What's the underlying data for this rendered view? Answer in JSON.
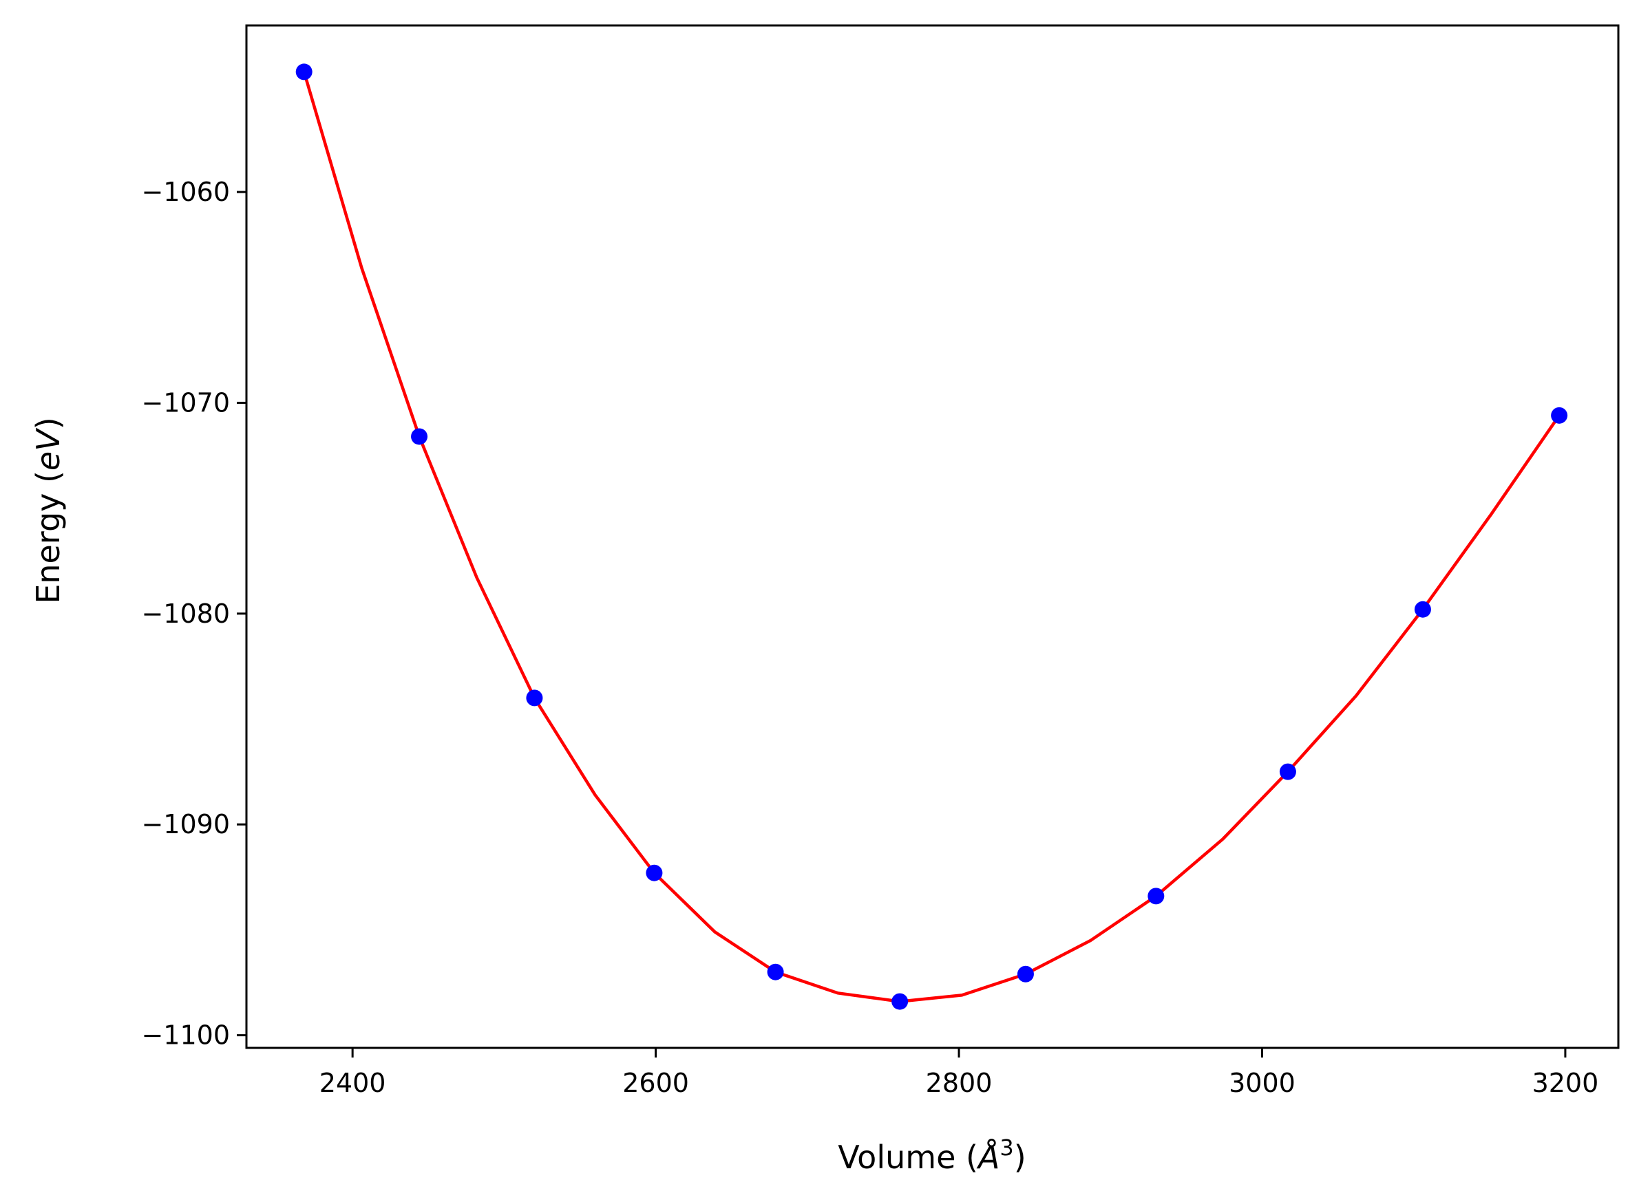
{
  "chart_data": {
    "type": "scatter",
    "title": "",
    "xlabel_parts": {
      "text": "Volume (",
      "symbol": "Å",
      "exponent": "3",
      "close": ")"
    },
    "ylabel_parts": {
      "text": "Energy (",
      "unit": "eV",
      "close": ")"
    },
    "xlim": [
      2330,
      3235
    ],
    "ylim": [
      -1100.6,
      -1052.1
    ],
    "xticks": [
      2400,
      2600,
      2800,
      3000,
      3200
    ],
    "xtick_labels": [
      "2400",
      "2600",
      "2800",
      "3000",
      "3200"
    ],
    "yticks": [
      -1060,
      -1070,
      -1080,
      -1090,
      -1100
    ],
    "ytick_labels": [
      "−1060",
      "−1070",
      "−1080",
      "−1090",
      "−1100"
    ],
    "grid": false,
    "series": [
      {
        "kind": "points",
        "color": "#0000ff",
        "x": [
          2368,
          2444,
          2520,
          2599,
          2679,
          2761,
          2844,
          2930,
          3017,
          3106,
          3196
        ],
        "y": [
          -1054.3,
          -1071.6,
          -1084.0,
          -1092.3,
          -1097.0,
          -1098.4,
          -1097.1,
          -1093.4,
          -1087.5,
          -1079.8,
          -1070.6
        ]
      },
      {
        "kind": "fit-line",
        "color": "#ff0000",
        "x": [
          2368,
          2406,
          2444,
          2482,
          2520,
          2560,
          2599,
          2639,
          2679,
          2720,
          2761,
          2802,
          2844,
          2887,
          2930,
          2974,
          3017,
          3062,
          3106,
          3151,
          3196
        ],
        "y": [
          -1054.3,
          -1063.6,
          -1071.6,
          -1078.3,
          -1084.0,
          -1088.6,
          -1092.3,
          -1095.1,
          -1097.0,
          -1098.0,
          -1098.4,
          -1098.1,
          -1097.1,
          -1095.5,
          -1093.4,
          -1090.7,
          -1087.5,
          -1083.9,
          -1079.8,
          -1075.3,
          -1070.6
        ]
      }
    ]
  }
}
